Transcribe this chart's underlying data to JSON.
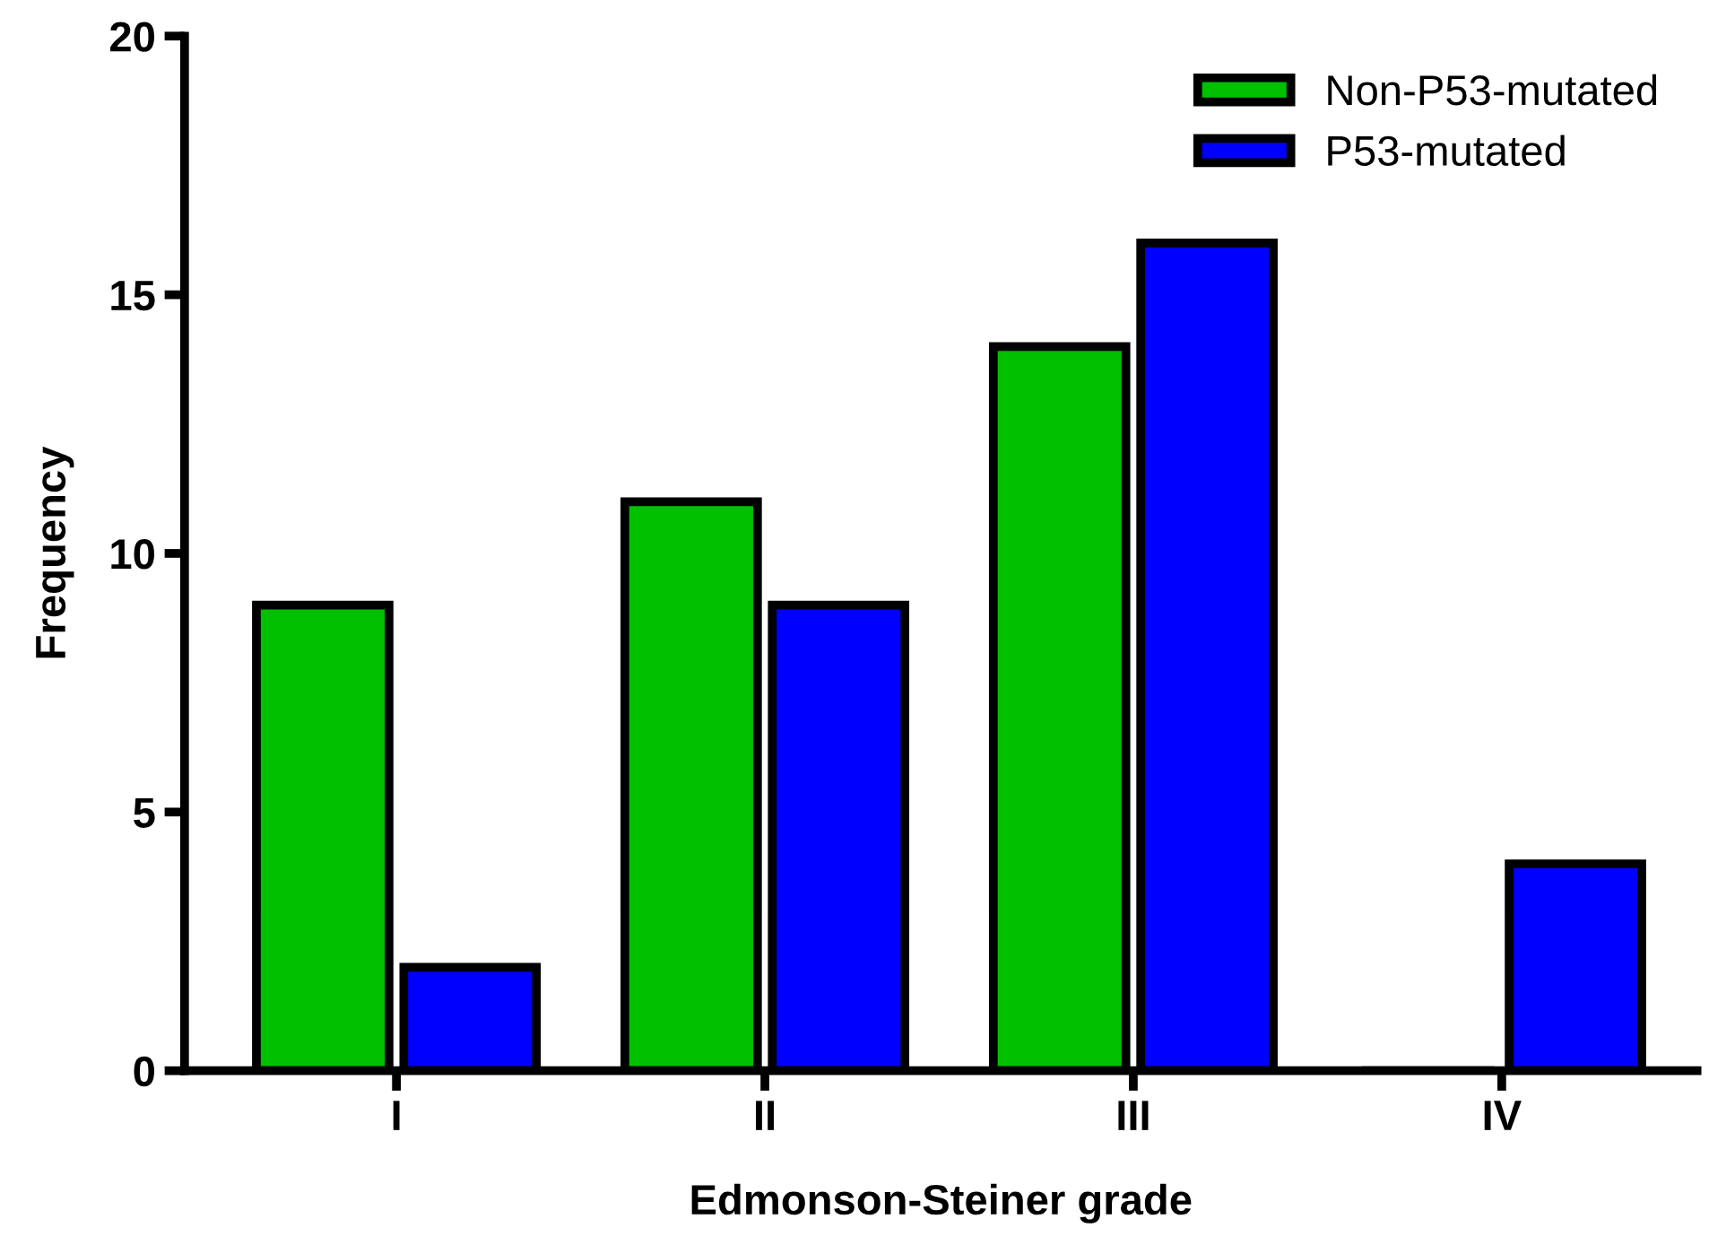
{
  "chart_data": {
    "type": "bar",
    "xlabel": "Edmonson-Steiner grade",
    "ylabel": "Frequency",
    "categories": [
      "I",
      "II",
      "III",
      "IV"
    ],
    "series": [
      {
        "name": "Non-P53-mutated",
        "color": "#00c000",
        "values": [
          9,
          11,
          14,
          0
        ]
      },
      {
        "name": "P53-mutated",
        "color": "#0000ff",
        "values": [
          2,
          9,
          16,
          4
        ]
      }
    ],
    "ylim": [
      0,
      20
    ],
    "yticks": [
      0,
      5,
      10,
      15,
      20
    ],
    "grid": false,
    "legend": "top right"
  }
}
